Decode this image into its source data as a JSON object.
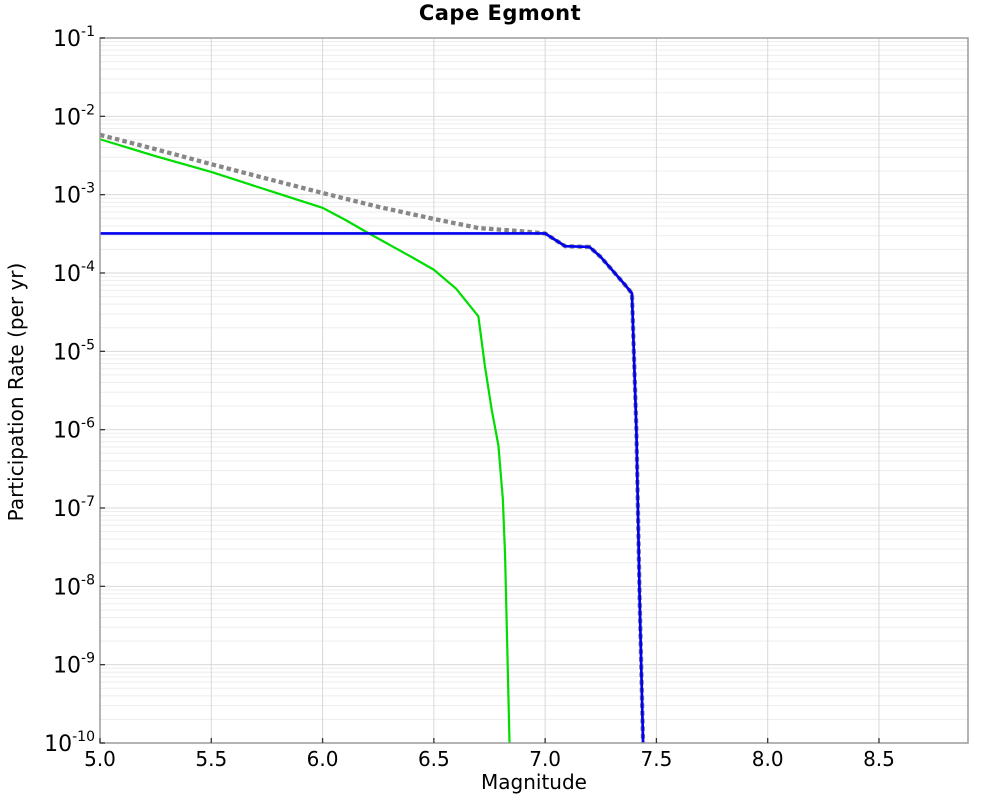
{
  "chart_data": {
    "type": "line",
    "title": "Cape Egmont",
    "xlabel": "Magnitude",
    "ylabel": "Participation Rate (per yr)",
    "x_axis": {
      "min": 5.0,
      "max": 8.9,
      "tick_values": [
        5.0,
        5.5,
        6.0,
        6.5,
        7.0,
        7.5,
        8.0,
        8.5
      ],
      "tick_labels": [
        "5.0",
        "5.5",
        "6.0",
        "6.5",
        "7.0",
        "7.5",
        "8.0",
        "8.5"
      ]
    },
    "y_axis": {
      "scale": "log",
      "max_exp": -1,
      "min_exp": -10,
      "tick_base": "10",
      "tick_exponents": [
        "-1",
        "-2",
        "-3",
        "-4",
        "-5",
        "-6",
        "-7",
        "-8",
        "-9",
        "-10"
      ]
    },
    "grid": {
      "major_color": "#d9d9d9",
      "minor_color": "#ededed",
      "frame_color": "#9b9b9b",
      "tick_color": "#333333"
    },
    "series": [
      {
        "name": "green-solid-curve",
        "color": "#00dd00",
        "style": "solid",
        "width": 2.2,
        "points": [
          [
            5.0,
            0.0051
          ],
          [
            5.25,
            0.0031
          ],
          [
            5.5,
            0.00195
          ],
          [
            5.75,
            0.00115
          ],
          [
            6.0,
            0.00068
          ],
          [
            6.1,
            0.00048
          ],
          [
            6.2,
            0.00033
          ],
          [
            6.3,
            0.00023
          ],
          [
            6.4,
            0.00016
          ],
          [
            6.5,
            0.00011
          ],
          [
            6.6,
            6.3e-05
          ],
          [
            6.7,
            2.8e-05
          ],
          [
            6.73,
            6.3e-06
          ],
          [
            6.76,
            1.8e-06
          ],
          [
            6.79,
            6.3e-07
          ],
          [
            6.81,
            1.3e-07
          ],
          [
            6.82,
            2.5e-08
          ],
          [
            6.83,
            1.6e-09
          ],
          [
            6.84,
            1e-10
          ]
        ]
      },
      {
        "name": "gray-dotted-curve",
        "color": "#878787",
        "style": "dotted",
        "width": 4.3,
        "points": [
          [
            5.0,
            0.0058
          ],
          [
            5.25,
            0.0038
          ],
          [
            5.5,
            0.00245
          ],
          [
            5.75,
            0.0016
          ],
          [
            6.0,
            0.00105
          ],
          [
            6.25,
            0.0007
          ],
          [
            6.5,
            0.00049
          ],
          [
            6.7,
            0.000375
          ],
          [
            6.9,
            0.00034
          ],
          [
            7.0,
            0.00032
          ],
          [
            7.09,
            0.00022
          ],
          [
            7.2,
            0.000215
          ],
          [
            7.25,
            0.00016
          ],
          [
            7.3,
            0.00011
          ],
          [
            7.36,
            7e-05
          ],
          [
            7.39,
            5.5e-05
          ],
          [
            7.41,
            1e-06
          ],
          [
            7.425,
            6.3e-09
          ],
          [
            7.44,
            1e-10
          ]
        ]
      },
      {
        "name": "blue-solid-curve",
        "color": "#0000ee",
        "style": "solid",
        "width": 2.7,
        "points": [
          [
            5.0,
            0.00032
          ],
          [
            7.0,
            0.00032
          ],
          [
            7.09,
            0.00022
          ],
          [
            7.2,
            0.000215
          ],
          [
            7.25,
            0.00016
          ],
          [
            7.3,
            0.00011
          ],
          [
            7.36,
            7e-05
          ],
          [
            7.39,
            5.5e-05
          ],
          [
            7.41,
            1e-06
          ],
          [
            7.425,
            6.3e-09
          ],
          [
            7.44,
            1e-10
          ]
        ]
      }
    ]
  }
}
